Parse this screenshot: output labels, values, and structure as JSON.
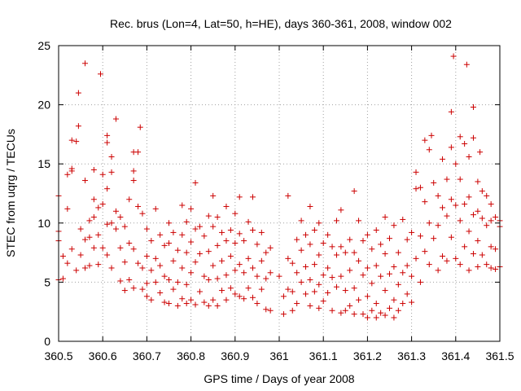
{
  "chart_data": {
    "type": "scatter",
    "title": "Rec. brus (Lon=4, Lat=50, h=HE), days 360-361, 2008, window 002",
    "xlabel": "GPS time / Days of year 2008",
    "ylabel": "STEC from uqrg / TECUs",
    "xlim": [
      360.5,
      361.5
    ],
    "ylim": [
      0,
      25
    ],
    "xticks": [
      "360.5",
      "360.6",
      "360.7",
      "360.8",
      "360.9",
      "361",
      "361.1",
      "361.2",
      "361.3",
      "361.4",
      "361.5"
    ],
    "yticks": [
      "0",
      "5",
      "10",
      "15",
      "20",
      "25"
    ],
    "grid": true,
    "marker_color": "#cc0000",
    "points": [
      [
        360.5,
        12.3
      ],
      [
        360.5,
        9.3
      ],
      [
        360.5,
        8.5
      ],
      [
        360.5,
        5.2
      ],
      [
        360.51,
        7.2
      ],
      [
        360.51,
        5.3
      ],
      [
        360.52,
        14.1
      ],
      [
        360.52,
        11.2
      ],
      [
        360.52,
        6.6
      ],
      [
        360.53,
        14.6
      ],
      [
        360.53,
        14.4
      ],
      [
        360.53,
        17.0
      ],
      [
        360.53,
        7.8
      ],
      [
        360.54,
        16.9
      ],
      [
        360.54,
        6.0
      ],
      [
        360.545,
        21.0
      ],
      [
        360.545,
        18.2
      ],
      [
        360.55,
        9.5
      ],
      [
        360.55,
        7.3
      ],
      [
        360.56,
        23.5
      ],
      [
        360.56,
        13.6
      ],
      [
        360.56,
        8.6
      ],
      [
        360.56,
        6.2
      ],
      [
        360.57,
        10.2
      ],
      [
        360.57,
        8.8
      ],
      [
        360.57,
        6.4
      ],
      [
        360.58,
        14.5
      ],
      [
        360.58,
        12.0
      ],
      [
        360.58,
        10.5
      ],
      [
        360.58,
        7.9
      ],
      [
        360.59,
        11.3
      ],
      [
        360.59,
        9.0
      ],
      [
        360.59,
        6.5
      ],
      [
        360.595,
        22.6
      ],
      [
        360.6,
        14.1
      ],
      [
        360.6,
        11.6
      ],
      [
        360.6,
        7.9
      ],
      [
        360.61,
        17.4
      ],
      [
        360.61,
        16.8
      ],
      [
        360.61,
        12.9
      ],
      [
        360.61,
        9.9
      ],
      [
        360.61,
        7.3
      ],
      [
        360.62,
        15.6
      ],
      [
        360.62,
        14.3
      ],
      [
        360.62,
        10.0
      ],
      [
        360.62,
        6.2
      ],
      [
        360.63,
        18.8
      ],
      [
        360.63,
        11.0
      ],
      [
        360.63,
        9.5
      ],
      [
        360.64,
        10.5
      ],
      [
        360.64,
        7.9
      ],
      [
        360.64,
        5.1
      ],
      [
        360.65,
        9.7
      ],
      [
        360.65,
        6.7
      ],
      [
        360.65,
        4.3
      ],
      [
        360.66,
        12.0
      ],
      [
        360.66,
        8.3
      ],
      [
        360.66,
        5.2
      ],
      [
        360.67,
        16.0
      ],
      [
        360.67,
        14.4
      ],
      [
        360.67,
        13.6
      ],
      [
        360.67,
        7.8
      ],
      [
        360.67,
        4.5
      ],
      [
        360.68,
        16.0
      ],
      [
        360.68,
        11.4
      ],
      [
        360.68,
        6.6
      ],
      [
        360.685,
        18.1
      ],
      [
        360.69,
        10.8
      ],
      [
        360.69,
        6.2
      ],
      [
        360.69,
        4.4
      ],
      [
        360.7,
        9.5
      ],
      [
        360.7,
        7.2
      ],
      [
        360.7,
        4.9
      ],
      [
        360.7,
        3.8
      ],
      [
        360.71,
        8.5
      ],
      [
        360.71,
        6.0
      ],
      [
        360.71,
        3.5
      ],
      [
        360.72,
        11.2
      ],
      [
        360.72,
        7.0
      ],
      [
        360.72,
        5.0
      ],
      [
        360.73,
        9.0
      ],
      [
        360.73,
        6.4
      ],
      [
        360.73,
        4.1
      ],
      [
        360.74,
        8.1
      ],
      [
        360.74,
        5.5
      ],
      [
        360.74,
        3.3
      ],
      [
        360.75,
        10.0
      ],
      [
        360.75,
        8.3
      ],
      [
        360.75,
        5.2
      ],
      [
        360.75,
        3.2
      ],
      [
        360.76,
        9.2
      ],
      [
        360.76,
        6.8
      ],
      [
        360.76,
        4.4
      ],
      [
        360.77,
        7.7
      ],
      [
        360.77,
        5.0
      ],
      [
        360.77,
        3.0
      ],
      [
        360.78,
        11.5
      ],
      [
        360.78,
        9.0
      ],
      [
        360.78,
        6.2
      ],
      [
        360.78,
        3.6
      ],
      [
        360.79,
        10.1
      ],
      [
        360.79,
        7.5
      ],
      [
        360.79,
        4.8
      ],
      [
        360.79,
        3.2
      ],
      [
        360.8,
        11.2
      ],
      [
        360.8,
        8.4
      ],
      [
        360.8,
        5.8
      ],
      [
        360.8,
        3.5
      ],
      [
        360.81,
        13.4
      ],
      [
        360.81,
        9.5
      ],
      [
        360.81,
        6.7
      ],
      [
        360.81,
        3.1
      ],
      [
        360.82,
        9.7
      ],
      [
        360.82,
        7.4
      ],
      [
        360.82,
        4.2
      ],
      [
        360.83,
        8.9
      ],
      [
        360.83,
        5.5
      ],
      [
        360.83,
        3.3
      ],
      [
        360.84,
        10.6
      ],
      [
        360.84,
        7.6
      ],
      [
        360.84,
        5.2
      ],
      [
        360.84,
        3.0
      ],
      [
        360.85,
        12.3
      ],
      [
        360.85,
        9.7
      ],
      [
        360.85,
        6.4
      ],
      [
        360.85,
        3.5
      ],
      [
        360.86,
        10.5
      ],
      [
        360.86,
        8.1
      ],
      [
        360.86,
        5.3
      ],
      [
        360.86,
        3.0
      ],
      [
        360.87,
        9.2
      ],
      [
        360.87,
        6.8
      ],
      [
        360.87,
        4.3
      ],
      [
        360.88,
        11.4
      ],
      [
        360.88,
        8.5
      ],
      [
        360.88,
        5.6
      ],
      [
        360.88,
        3.5
      ],
      [
        360.89,
        9.4
      ],
      [
        360.89,
        7.2
      ],
      [
        360.89,
        4.5
      ],
      [
        360.9,
        10.8
      ],
      [
        360.9,
        8.3
      ],
      [
        360.9,
        6.0
      ],
      [
        360.9,
        4.0
      ],
      [
        360.91,
        12.2
      ],
      [
        360.91,
        9.1
      ],
      [
        360.91,
        6.5
      ],
      [
        360.91,
        3.8
      ],
      [
        360.92,
        8.5
      ],
      [
        360.92,
        5.8
      ],
      [
        360.92,
        3.6
      ],
      [
        360.93,
        10.1
      ],
      [
        360.93,
        7.0
      ],
      [
        360.93,
        4.5
      ],
      [
        360.94,
        12.2
      ],
      [
        360.94,
        9.4
      ],
      [
        360.94,
        6.2
      ],
      [
        360.94,
        3.7
      ],
      [
        360.95,
        8.2
      ],
      [
        360.95,
        5.5
      ],
      [
        360.95,
        3.2
      ],
      [
        360.96,
        9.2
      ],
      [
        360.96,
        6.8
      ],
      [
        360.96,
        4.4
      ],
      [
        360.97,
        7.5
      ],
      [
        360.97,
        5.3
      ],
      [
        360.97,
        2.7
      ],
      [
        360.98,
        7.9
      ],
      [
        360.98,
        5.8
      ],
      [
        360.98,
        2.6
      ],
      [
        361.0,
        5.5
      ],
      [
        361.01,
        3.8
      ],
      [
        361.01,
        2.3
      ],
      [
        361.02,
        12.3
      ],
      [
        361.02,
        7.0
      ],
      [
        361.02,
        4.4
      ],
      [
        361.03,
        6.6
      ],
      [
        361.03,
        4.2
      ],
      [
        361.03,
        2.6
      ],
      [
        361.04,
        8.6
      ],
      [
        361.04,
        5.8
      ],
      [
        361.04,
        3.2
      ],
      [
        361.05,
        10.2
      ],
      [
        361.05,
        7.7
      ],
      [
        361.05,
        5.0
      ],
      [
        361.06,
        9.0
      ],
      [
        361.06,
        6.3
      ],
      [
        361.06,
        4.0
      ],
      [
        361.07,
        11.4
      ],
      [
        361.07,
        8.2
      ],
      [
        361.07,
        5.2
      ],
      [
        361.07,
        3.0
      ],
      [
        361.08,
        9.4
      ],
      [
        361.08,
        6.5
      ],
      [
        361.08,
        4.2
      ],
      [
        361.09,
        10.0
      ],
      [
        361.09,
        7.3
      ],
      [
        361.09,
        4.8
      ],
      [
        361.09,
        2.8
      ],
      [
        361.1,
        8.3
      ],
      [
        361.1,
        5.6
      ],
      [
        361.1,
        3.4
      ],
      [
        361.11,
        9.0
      ],
      [
        361.11,
        6.2
      ],
      [
        361.11,
        4.1
      ],
      [
        361.12,
        8.0
      ],
      [
        361.12,
        5.4
      ],
      [
        361.12,
        2.6
      ],
      [
        361.13,
        10.2
      ],
      [
        361.13,
        7.3
      ],
      [
        361.13,
        4.6
      ],
      [
        361.14,
        11.1
      ],
      [
        361.14,
        8.0
      ],
      [
        361.14,
        5.5
      ],
      [
        361.14,
        2.4
      ],
      [
        361.15,
        7.5
      ],
      [
        361.15,
        4.3
      ],
      [
        361.15,
        2.6
      ],
      [
        361.16,
        8.6
      ],
      [
        361.16,
        6.0
      ],
      [
        361.16,
        3.0
      ],
      [
        361.17,
        12.7
      ],
      [
        361.17,
        7.5
      ],
      [
        361.17,
        4.5
      ],
      [
        361.17,
        2.3
      ],
      [
        361.18,
        10.2
      ],
      [
        361.18,
        6.8
      ],
      [
        361.18,
        3.5
      ],
      [
        361.19,
        8.5
      ],
      [
        361.19,
        5.6
      ],
      [
        361.19,
        2.3
      ],
      [
        361.2,
        9.0
      ],
      [
        361.2,
        6.2
      ],
      [
        361.2,
        3.8
      ],
      [
        361.2,
        2.0
      ],
      [
        361.21,
        7.8
      ],
      [
        361.21,
        4.9
      ],
      [
        361.21,
        2.6
      ],
      [
        361.22,
        9.4
      ],
      [
        361.22,
        6.4
      ],
      [
        361.22,
        3.2
      ],
      [
        361.22,
        2.0
      ],
      [
        361.23,
        8.2
      ],
      [
        361.23,
        5.5
      ],
      [
        361.23,
        2.4
      ],
      [
        361.24,
        10.5
      ],
      [
        361.24,
        7.4
      ],
      [
        361.24,
        4.3
      ],
      [
        361.24,
        2.2
      ],
      [
        361.25,
        8.7
      ],
      [
        361.25,
        5.7
      ],
      [
        361.25,
        2.8
      ],
      [
        361.26,
        9.8
      ],
      [
        361.26,
        6.3
      ],
      [
        361.26,
        3.5
      ],
      [
        361.26,
        2.0
      ],
      [
        361.27,
        7.5
      ],
      [
        361.27,
        4.8
      ],
      [
        361.27,
        2.6
      ],
      [
        361.28,
        10.3
      ],
      [
        361.28,
        5.8
      ],
      [
        361.28,
        3.2
      ],
      [
        361.29,
        8.6
      ],
      [
        361.29,
        6.4
      ],
      [
        361.29,
        4.0
      ],
      [
        361.3,
        9.2
      ],
      [
        361.3,
        5.5
      ],
      [
        361.3,
        3.3
      ],
      [
        361.31,
        14.3
      ],
      [
        361.31,
        12.9
      ],
      [
        361.31,
        7.0
      ],
      [
        361.32,
        13.0
      ],
      [
        361.32,
        8.9
      ],
      [
        361.32,
        5.0
      ],
      [
        361.33,
        17.0
      ],
      [
        361.33,
        11.8
      ],
      [
        361.33,
        7.6
      ],
      [
        361.34,
        16.2
      ],
      [
        361.34,
        10.0
      ],
      [
        361.34,
        6.5
      ],
      [
        361.345,
        17.4
      ],
      [
        361.35,
        13.4
      ],
      [
        361.35,
        8.7
      ],
      [
        361.36,
        12.3
      ],
      [
        361.36,
        9.8
      ],
      [
        361.36,
        6.0
      ],
      [
        361.37,
        15.4
      ],
      [
        361.37,
        11.3
      ],
      [
        361.37,
        7.2
      ],
      [
        361.38,
        13.7
      ],
      [
        361.38,
        10.6
      ],
      [
        361.38,
        6.8
      ],
      [
        361.39,
        19.4
      ],
      [
        361.39,
        16.4
      ],
      [
        361.39,
        12.0
      ],
      [
        361.39,
        8.8
      ],
      [
        361.395,
        24.1
      ],
      [
        361.4,
        15.0
      ],
      [
        361.4,
        11.5
      ],
      [
        361.4,
        7.0
      ],
      [
        361.41,
        17.3
      ],
      [
        361.41,
        13.7
      ],
      [
        361.41,
        10.2
      ],
      [
        361.41,
        6.5
      ],
      [
        361.42,
        16.7
      ],
      [
        361.42,
        11.6
      ],
      [
        361.42,
        8.0
      ],
      [
        361.425,
        23.4
      ],
      [
        361.43,
        15.6
      ],
      [
        361.43,
        12.2
      ],
      [
        361.43,
        9.3
      ],
      [
        361.43,
        6.0
      ],
      [
        361.44,
        19.8
      ],
      [
        361.44,
        17.2
      ],
      [
        361.44,
        10.7
      ],
      [
        361.44,
        7.4
      ],
      [
        361.45,
        13.5
      ],
      [
        361.45,
        11.0
      ],
      [
        361.45,
        8.5
      ],
      [
        361.45,
        6.3
      ],
      [
        361.455,
        16.0
      ],
      [
        361.46,
        12.7
      ],
      [
        361.46,
        10.4
      ],
      [
        361.46,
        7.3
      ],
      [
        361.47,
        12.3
      ],
      [
        361.47,
        9.8
      ],
      [
        361.47,
        6.5
      ],
      [
        361.48,
        11.6
      ],
      [
        361.48,
        10.2
      ],
      [
        361.48,
        8.0
      ],
      [
        361.48,
        6.2
      ],
      [
        361.49,
        10.5
      ],
      [
        361.49,
        7.8
      ],
      [
        361.49,
        6.1
      ],
      [
        361.5,
        10.2
      ],
      [
        361.5,
        9.7
      ],
      [
        361.5,
        6.3
      ]
    ]
  }
}
